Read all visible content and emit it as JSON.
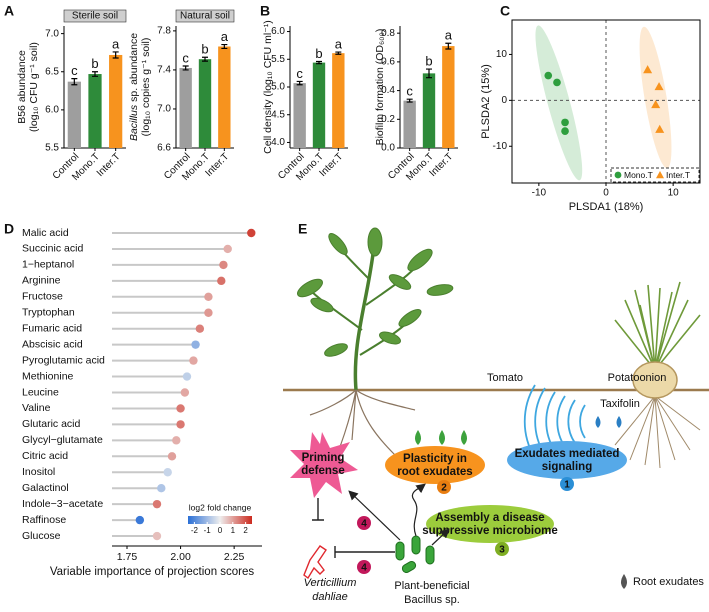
{
  "panel_labels": [
    "A",
    "B",
    "C",
    "D",
    "E"
  ],
  "chart_data": [
    {
      "type": "bar",
      "title": "Sterile soil",
      "ylabel": [
        "B56 abundance",
        "(log₁₀ CFU g⁻¹ soil)"
      ],
      "categories": [
        "Control",
        "Mono.T",
        "Inter.T"
      ],
      "values": [
        6.37,
        6.47,
        6.72
      ],
      "errors": [
        0.04,
        0.03,
        0.04
      ],
      "annotations": [
        "c",
        "b",
        "a"
      ],
      "colors": [
        "#9e9e9e",
        "#2e8b3a",
        "#f7931e"
      ],
      "ylim": [
        5.5,
        7.1
      ],
      "yticks": [
        5.5,
        {
          "value": 6,
          "label": "6.0"
        },
        6.5,
        {
          "value": 7,
          "label": "7.0"
        }
      ]
    },
    {
      "type": "bar",
      "title": "Natural soil",
      "ylabel": [
        [
          "Bacillus",
          "sp. abundance"
        ],
        "(log₁₀ copies g⁻¹ soil)"
      ],
      "categories": [
        "Control",
        "Mono.T",
        "Inter.T"
      ],
      "values": [
        7.42,
        7.51,
        7.64
      ],
      "errors": [
        0.02,
        0.02,
        0.02
      ],
      "annotations": [
        "c",
        "b",
        "a"
      ],
      "colors": [
        "#9e9e9e",
        "#2e8b3a",
        "#f7931e"
      ],
      "ylim": [
        6.6,
        7.85
      ],
      "yticks": [
        6.6,
        {
          "value": 7,
          "label": "7.0"
        },
        7.4,
        7.8
      ]
    },
    {
      "type": "bar",
      "ylabel": [
        "Cell density (log₁₀ CFU ml⁻¹)"
      ],
      "categories": [
        "Control",
        "Mono.T",
        "Inter.T"
      ],
      "values": [
        5.07,
        5.44,
        5.61
      ],
      "errors": [
        0.03,
        0.02,
        0.02
      ],
      "annotations": [
        "c",
        "b",
        "a"
      ],
      "colors": [
        "#9e9e9e",
        "#2e8b3a",
        "#f7931e"
      ],
      "ylim": [
        3.9,
        6.1
      ],
      "yticks": [
        {
          "value": 4,
          "label": "4.0"
        },
        4.5,
        {
          "value": 5,
          "label": "5.0"
        },
        5.5,
        {
          "value": 6,
          "label": "6.0"
        }
      ]
    },
    {
      "type": "bar",
      "ylabel": [
        "Biofilm formation (OD₆₀₀)"
      ],
      "categories": [
        "Control",
        "Mono.T",
        "Inter.T"
      ],
      "values": [
        0.33,
        0.52,
        0.71
      ],
      "errors": [
        0.01,
        0.03,
        0.02
      ],
      "annotations": [
        "c",
        "b",
        "a"
      ],
      "colors": [
        "#9e9e9e",
        "#2e8b3a",
        "#f7931e"
      ],
      "ylim": [
        0,
        0.85
      ],
      "yticks": [
        {
          "value": 0,
          "label": "0.0"
        },
        0.2,
        0.4,
        0.6,
        0.8
      ]
    },
    {
      "type": "scatter",
      "xlabel": "PLSDA1 (18%)",
      "ylabel": "PLSDA2 (15%)",
      "xlim": [
        -14,
        14
      ],
      "ylim": [
        -18,
        17.5
      ],
      "xticks": [
        -10,
        0,
        10
      ],
      "yticks": [
        -10,
        0,
        10
      ],
      "legend": "bottom right",
      "series": [
        {
          "name": "Mono.T",
          "color": "#2e9e3e",
          "marker": "circle",
          "x": [
            -8.6,
            -7.3,
            -6.1,
            -6.1
          ],
          "y": [
            5.4,
            3.9,
            -4.8,
            -6.7
          ]
        },
        {
          "name": "Inter.T",
          "color": "#f7931e",
          "marker": "triangle",
          "x": [
            6.2,
            7.9,
            7.4,
            8.0
          ],
          "y": [
            6.7,
            3.0,
            -0.9,
            -6.3
          ]
        }
      ]
    },
    {
      "type": "lollipop",
      "xlabel": "Variable importance of projection scores",
      "categories": [
        "Malic acid",
        "Succinic acid",
        "1−heptanol",
        "Arginine",
        "Fructose",
        "Tryptophan",
        "Fumaric acid",
        "Abscisic acid",
        "Pyroglutamic acid",
        "Methionine",
        "Leucine",
        "Valine",
        "Glutaric acid",
        "Glycyl−glutamate",
        "Citric acid",
        "Inositol",
        "Galactinol",
        "Indole−3−acetate",
        "Raffinose",
        "Glucose"
      ],
      "values": [
        2.33,
        2.22,
        2.2,
        2.19,
        2.13,
        2.13,
        2.09,
        2.07,
        2.06,
        2.03,
        2.02,
        2.0,
        2.0,
        1.98,
        1.96,
        1.94,
        1.91,
        1.89,
        1.81,
        1.89
      ],
      "color_values": [
        2.2,
        0.8,
        1.3,
        1.6,
        1.0,
        1.1,
        1.4,
        -1.2,
        0.9,
        -0.6,
        0.9,
        1.5,
        1.5,
        0.8,
        1.0,
        -0.5,
        -0.8,
        1.5,
        -2.3,
        0.6
      ],
      "colorbar_title": "log2 fold change",
      "clim": [
        -2.5,
        2.5
      ],
      "cticks": [
        -2,
        -1,
        0,
        1,
        2
      ],
      "colorscale": [
        "#2a6fd6",
        "#eeeeee",
        "#cc2a1e"
      ],
      "xlim": [
        1.68,
        2.38
      ],
      "xticks": [
        1.75,
        {
          "value": 2,
          "label": "2.00"
        },
        2.25
      ]
    }
  ],
  "diagram": {
    "plants": [
      "Tomato",
      "Potatoonion"
    ],
    "compound": "Taxifolin",
    "processes": [
      {
        "lines": [
          "Exudates mediated",
          "signaling"
        ],
        "step": 1
      },
      {
        "lines": [
          "Plasticity in",
          "root exudates"
        ],
        "step": 2
      },
      {
        "lines": [
          "Assembly a disease",
          "suppressive microbiome"
        ],
        "step": 3
      },
      {
        "lines": [
          "Priming",
          "defense"
        ],
        "step": 4
      }
    ],
    "inhibition_step": 4,
    "pathogen": [
      "Verticillium",
      "dahliae"
    ],
    "beneficial": [
      "Plant-beneficial",
      "Bacillus sp."
    ],
    "legend": "Root exudates"
  }
}
